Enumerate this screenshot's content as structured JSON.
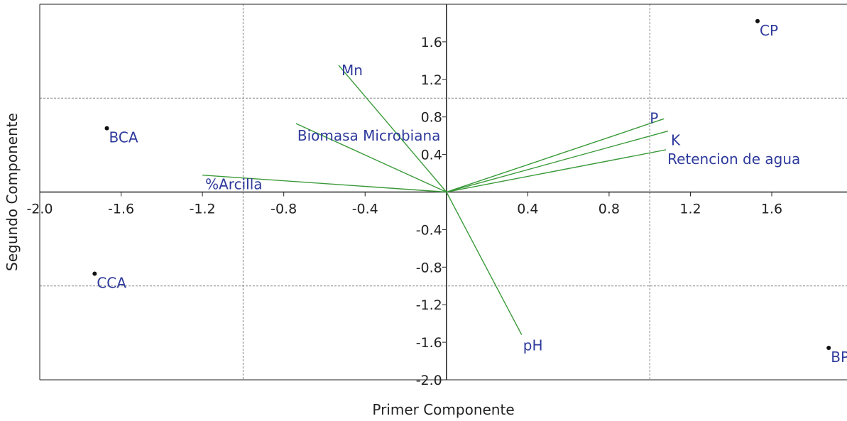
{
  "chart_data": {
    "type": "scatter",
    "title": "",
    "xlabel": "Primer Componente",
    "ylabel": "Segundo Componente",
    "xlim": [
      -2.0,
      1.97
    ],
    "ylim": [
      -2.0,
      2.0
    ],
    "x_ticks": [
      -2.0,
      -1.6,
      -1.2,
      -0.8,
      -0.4,
      0.4,
      0.8,
      1.2,
      1.6
    ],
    "x_tick_labels": [
      "-2.0",
      "-1.6",
      "-1.2",
      "-0.8",
      "-0.4",
      "0.4",
      "0.8",
      "1.2",
      "1.6"
    ],
    "y_ticks": [
      1.6,
      1.2,
      0.8,
      0.4,
      -0.4,
      -0.8,
      -1.2,
      -1.6,
      -2.0
    ],
    "y_tick_labels": [
      "1.6",
      "1.2",
      "0.8",
      "0.4",
      "-0.4",
      "-0.8",
      "-1.2",
      "-1.6",
      "-2.0"
    ],
    "grid": {
      "x": [
        -1.0,
        1.0
      ],
      "y": [
        1.0,
        -1.0
      ]
    },
    "points": [
      {
        "label": "CP",
        "x": 1.53,
        "y": 1.82
      },
      {
        "label": "BCA",
        "x": -1.67,
        "y": 0.68
      },
      {
        "label": "CCA",
        "x": -1.73,
        "y": -0.87
      },
      {
        "label": "BP",
        "x": 1.88,
        "y": -1.66
      }
    ],
    "vectors": [
      {
        "label": "Mn",
        "x": -0.53,
        "y": 1.35
      },
      {
        "label": "Biomasa Microbiana",
        "x": -0.74,
        "y": 0.73
      },
      {
        "label": "%Arcilla",
        "x": -1.2,
        "y": 0.18
      },
      {
        "label": "P",
        "x": 1.07,
        "y": 0.78
      },
      {
        "label": "K",
        "x": 1.09,
        "y": 0.65
      },
      {
        "label": "Retencion de agua",
        "x": 1.08,
        "y": 0.45
      },
      {
        "label": "pH",
        "x": 0.37,
        "y": -1.52
      }
    ],
    "colors": {
      "vector": "#3a9a3a",
      "label": "#2e3a9c",
      "point": "#111111",
      "axis": "#222222",
      "grid": "#888888"
    }
  }
}
